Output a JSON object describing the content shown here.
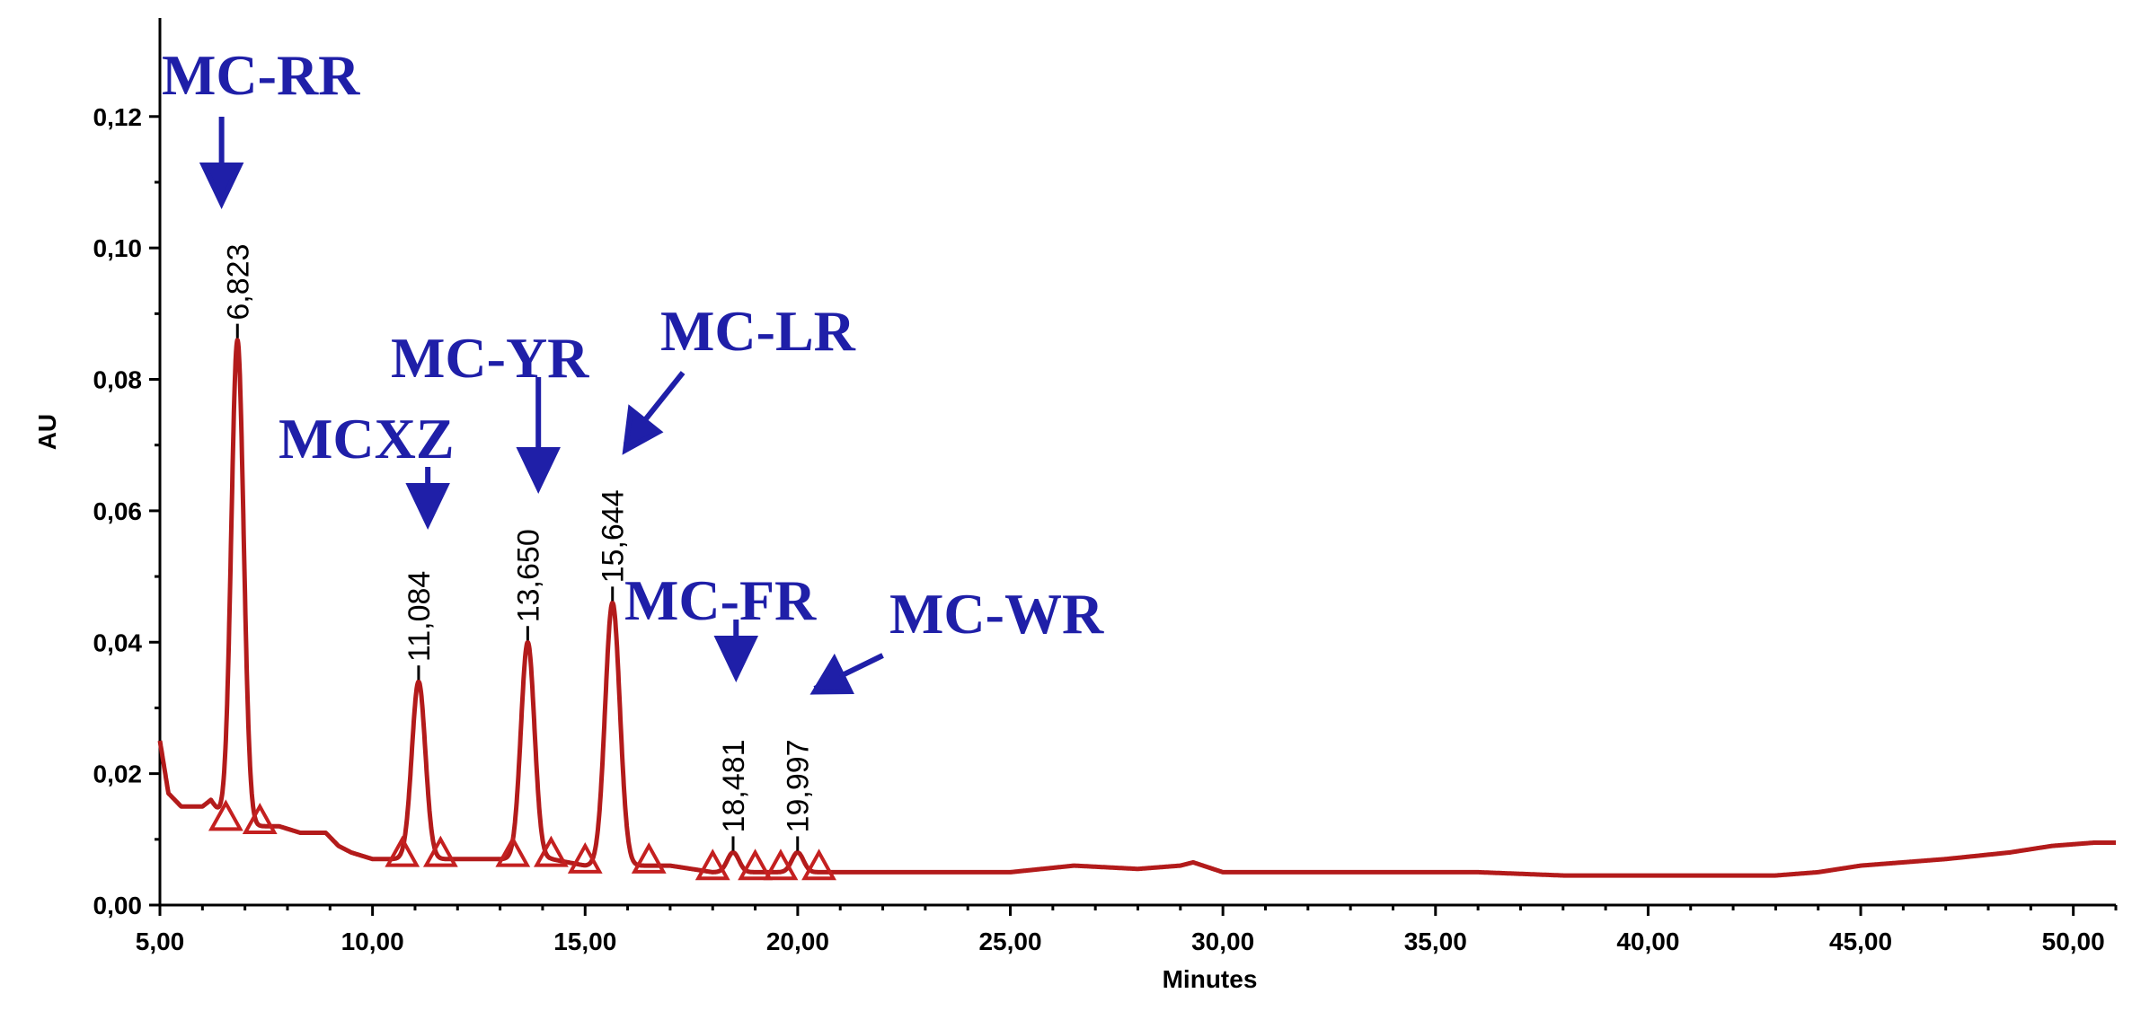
{
  "chart_data": {
    "type": "line",
    "title": "",
    "xlabel": "Minutes",
    "ylabel": "AU",
    "xlim": [
      5,
      51
    ],
    "ylim": [
      0,
      0.135
    ],
    "x_ticks": [
      "5,00",
      "10,00",
      "15,00",
      "20,00",
      "25,00",
      "30,00",
      "35,00",
      "40,00",
      "45,00",
      "50,00"
    ],
    "x_tick_values": [
      5,
      10,
      15,
      20,
      25,
      30,
      35,
      40,
      45,
      50
    ],
    "y_ticks": [
      "0,00",
      "0,02",
      "0,04",
      "0,06",
      "0,08",
      "0,10",
      "0,12"
    ],
    "y_tick_values": [
      0,
      0.02,
      0.04,
      0.06,
      0.08,
      0.1,
      0.12
    ],
    "color": "#b31b1b",
    "grid": false,
    "baseline": [
      [
        5.0,
        0.025
      ],
      [
        5.2,
        0.017
      ],
      [
        5.5,
        0.015
      ],
      [
        6.0,
        0.015
      ],
      [
        6.2,
        0.016
      ],
      [
        6.4,
        0.014
      ],
      [
        6.6,
        0.012
      ],
      [
        7.3,
        0.012
      ],
      [
        7.8,
        0.012
      ],
      [
        8.3,
        0.011
      ],
      [
        8.6,
        0.011
      ],
      [
        8.9,
        0.011
      ],
      [
        9.2,
        0.009
      ],
      [
        9.5,
        0.008
      ],
      [
        10.0,
        0.007
      ],
      [
        10.7,
        0.007
      ],
      [
        11.6,
        0.007
      ],
      [
        12.5,
        0.007
      ],
      [
        13.3,
        0.007
      ],
      [
        14.2,
        0.007
      ],
      [
        15.0,
        0.006
      ],
      [
        16.0,
        0.006
      ],
      [
        17.0,
        0.006
      ],
      [
        18.0,
        0.005
      ],
      [
        20.0,
        0.005
      ],
      [
        25.0,
        0.005
      ],
      [
        26.5,
        0.006
      ],
      [
        28.0,
        0.0055
      ],
      [
        29.0,
        0.006
      ],
      [
        29.3,
        0.0065
      ],
      [
        30.0,
        0.005
      ],
      [
        33.0,
        0.005
      ],
      [
        36.0,
        0.005
      ],
      [
        38.0,
        0.0045
      ],
      [
        40.0,
        0.0045
      ],
      [
        42.0,
        0.0045
      ],
      [
        43.0,
        0.0045
      ],
      [
        44.0,
        0.005
      ],
      [
        45.0,
        0.006
      ],
      [
        47.0,
        0.007
      ],
      [
        48.5,
        0.008
      ],
      [
        49.5,
        0.009
      ],
      [
        50.5,
        0.0095
      ],
      [
        51.0,
        0.0095
      ]
    ],
    "peaks": [
      {
        "rt": 6.823,
        "label": "6,823",
        "height": 0.086,
        "half_width": 0.32,
        "compound": "MC-RR",
        "start": 6.55,
        "end": 7.35
      },
      {
        "rt": 11.084,
        "label": "11,084",
        "height": 0.034,
        "half_width": 0.35,
        "compound": "MCXZ",
        "start": 10.7,
        "end": 11.6
      },
      {
        "rt": 13.65,
        "label": "13,650",
        "height": 0.04,
        "half_width": 0.35,
        "compound": "MC-YR",
        "start": 13.3,
        "end": 14.2
      },
      {
        "rt": 15.644,
        "label": "15,644",
        "height": 0.046,
        "half_width": 0.38,
        "compound": "MC-LR",
        "start": 15.0,
        "end": 16.5
      },
      {
        "rt": 18.481,
        "label": "18,481",
        "height": 0.008,
        "half_width": 0.3,
        "compound": "MC-FR",
        "start": 18.0,
        "end": 19.0
      },
      {
        "rt": 19.997,
        "label": "19,997",
        "height": 0.008,
        "half_width": 0.3,
        "compound": "MC-WR",
        "start": 19.6,
        "end": 20.5
      }
    ],
    "compound_labels": [
      "MC-RR",
      "MCXZ",
      "MC-YR",
      "MC-LR",
      "MC-FR",
      "MC-WR"
    ],
    "label_color": "#1f1fa8"
  }
}
